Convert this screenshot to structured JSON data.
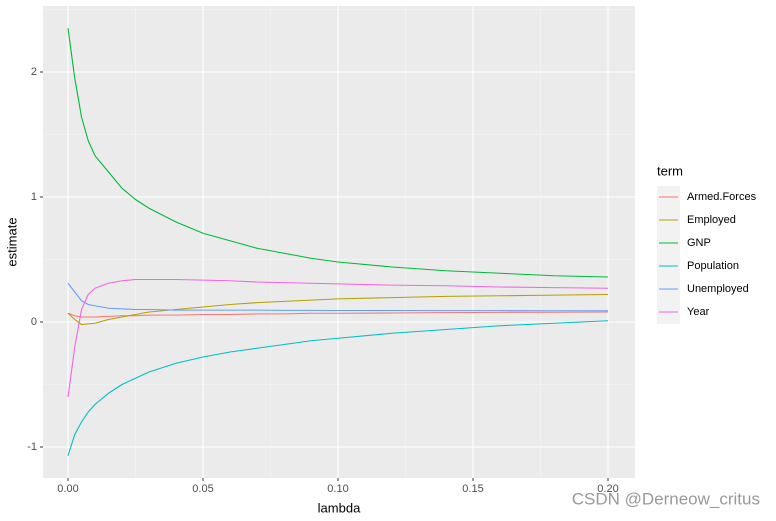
{
  "chart_data": {
    "type": "line",
    "x_label": "lambda",
    "y_label": "estimate",
    "legend_title": "term",
    "legend_position": "right",
    "grid": true,
    "xlim": [
      -0.00926,
      0.21
    ],
    "ylim": [
      -1.248,
      2.528
    ],
    "xticks": [
      {
        "value": 0,
        "label": "0.00"
      },
      {
        "value": 0.05,
        "label": "0.05"
      },
      {
        "value": 0.1,
        "label": "0.10"
      },
      {
        "value": 0.15,
        "label": "0.15"
      },
      {
        "value": 0.2,
        "label": "0.20"
      }
    ],
    "yticks": [
      -1,
      0,
      1,
      2
    ],
    "x": [
      0,
      0.0025,
      0.005,
      0.0075,
      0.01,
      0.015,
      0.02,
      0.025,
      0.03,
      0.04,
      0.05,
      0.06,
      0.07,
      0.08,
      0.09,
      0.1,
      0.12,
      0.14,
      0.16,
      0.18,
      0.2
    ],
    "series": [
      {
        "name": "Armed.Forces",
        "color": "#F8766D",
        "values": [
          0.07,
          0.05,
          0.04,
          0.04,
          0.04,
          0.045,
          0.05,
          0.05,
          0.055,
          0.055,
          0.06,
          0.06,
          0.065,
          0.065,
          0.07,
          0.07,
          0.072,
          0.075,
          0.077,
          0.078,
          0.08
        ]
      },
      {
        "name": "Employed",
        "color": "#B79F00",
        "values": [
          0.07,
          0.02,
          -0.02,
          -0.015,
          -0.01,
          0.02,
          0.04,
          0.06,
          0.08,
          0.1,
          0.12,
          0.14,
          0.155,
          0.165,
          0.175,
          0.185,
          0.195,
          0.205,
          0.21,
          0.215,
          0.22
        ]
      },
      {
        "name": "GNP",
        "color": "#00BA38",
        "values": [
          2.35,
          1.95,
          1.64,
          1.45,
          1.33,
          1.2,
          1.07,
          0.98,
          0.91,
          0.8,
          0.71,
          0.65,
          0.59,
          0.55,
          0.51,
          0.48,
          0.44,
          0.41,
          0.39,
          0.37,
          0.36
        ]
      },
      {
        "name": "Population",
        "color": "#00BFC4",
        "values": [
          -1.07,
          -0.9,
          -0.8,
          -0.72,
          -0.66,
          -0.57,
          -0.5,
          -0.45,
          -0.4,
          -0.33,
          -0.28,
          -0.24,
          -0.21,
          -0.18,
          -0.15,
          -0.13,
          -0.09,
          -0.06,
          -0.03,
          -0.01,
          0.01
        ]
      },
      {
        "name": "Unemployed",
        "color": "#619CFF",
        "values": [
          0.31,
          0.24,
          0.17,
          0.14,
          0.13,
          0.11,
          0.105,
          0.1,
          0.1,
          0.095,
          0.095,
          0.095,
          0.095,
          0.093,
          0.093,
          0.092,
          0.092,
          0.091,
          0.091,
          0.09,
          0.09
        ]
      },
      {
        "name": "Year",
        "color": "#F564E3",
        "values": [
          -0.6,
          -0.2,
          0.1,
          0.22,
          0.27,
          0.31,
          0.33,
          0.34,
          0.34,
          0.34,
          0.335,
          0.33,
          0.32,
          0.315,
          0.31,
          0.305,
          0.295,
          0.29,
          0.28,
          0.275,
          0.27
        ]
      }
    ],
    "watermark": "CSDN @Derneow_critus"
  }
}
